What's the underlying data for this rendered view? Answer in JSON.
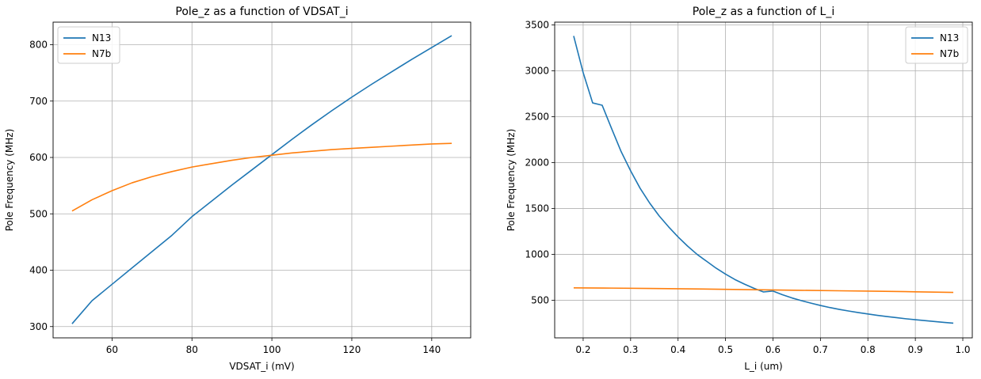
{
  "chart_data": [
    {
      "type": "line",
      "title": "Pole_z as a function of VDSAT_i",
      "xlabel": "VDSAT_i (mV)",
      "ylabel": "Pole Frequency (MHz)",
      "xlim": [
        45.25,
        149.75
      ],
      "ylim": [
        280,
        840
      ],
      "xticks": [
        60,
        80,
        100,
        120,
        140
      ],
      "yticks": [
        300,
        400,
        500,
        600,
        700,
        800
      ],
      "grid": true,
      "legend_position": "upper-left",
      "series": [
        {
          "name": "N13",
          "color": "#1f77b4",
          "x": [
            50,
            55,
            60,
            65,
            70,
            75,
            80,
            85,
            90,
            95,
            100,
            105,
            110,
            115,
            120,
            125,
            130,
            135,
            140,
            145
          ],
          "y": [
            305,
            346,
            375,
            404,
            433,
            462,
            495,
            523,
            551,
            578,
            605,
            632,
            658,
            683,
            707,
            730,
            752,
            774,
            795,
            816
          ]
        },
        {
          "name": "N7b",
          "color": "#ff7f0e",
          "x": [
            50,
            55,
            60,
            65,
            70,
            75,
            80,
            85,
            90,
            95,
            100,
            105,
            110,
            115,
            120,
            125,
            130,
            135,
            140,
            145
          ],
          "y": [
            505,
            525,
            541,
            555,
            566,
            575,
            583,
            589,
            595,
            600,
            604,
            608,
            611,
            614,
            616,
            618,
            620,
            622,
            624,
            625
          ]
        }
      ]
    },
    {
      "type": "line",
      "title": "Pole_z as a function of L_i",
      "xlabel": "L_i (um)",
      "ylabel": "Pole Frequency (MHz)",
      "xlim": [
        0.14,
        1.02
      ],
      "ylim": [
        90,
        3530
      ],
      "xticks": [
        0.2,
        0.3,
        0.4,
        0.5,
        0.6,
        0.7,
        0.8,
        0.9,
        1.0
      ],
      "xtick_labels": [
        "0.2",
        "0.3",
        "0.4",
        "0.5",
        "0.6",
        "0.7",
        "0.8",
        "0.9",
        "1.0"
      ],
      "yticks": [
        500,
        1000,
        1500,
        2000,
        2500,
        3000,
        3500
      ],
      "grid": true,
      "legend_position": "upper-right",
      "series": [
        {
          "name": "N13",
          "color": "#1f77b4",
          "x": [
            0.18,
            0.2,
            0.22,
            0.24,
            0.26,
            0.28,
            0.3,
            0.32,
            0.34,
            0.36,
            0.38,
            0.4,
            0.42,
            0.44,
            0.46,
            0.48,
            0.5,
            0.52,
            0.54,
            0.56,
            0.58,
            0.6,
            0.62,
            0.64,
            0.66,
            0.68,
            0.7,
            0.72,
            0.74,
            0.76,
            0.78,
            0.8,
            0.82,
            0.84,
            0.86,
            0.88,
            0.9,
            0.92,
            0.94,
            0.96,
            0.98
          ],
          "y": [
            3380,
            2980,
            2650,
            2625,
            2370,
            2120,
            1910,
            1720,
            1560,
            1420,
            1300,
            1190,
            1090,
            1000,
            925,
            850,
            785,
            725,
            675,
            630,
            590,
            600,
            560,
            525,
            495,
            468,
            443,
            420,
            400,
            382,
            365,
            350,
            335,
            322,
            310,
            298,
            288,
            278,
            268,
            259,
            250
          ]
        },
        {
          "name": "N7b",
          "color": "#ff7f0e",
          "x": [
            0.18,
            0.26,
            0.34,
            0.42,
            0.5,
            0.58,
            0.66,
            0.74,
            0.82,
            0.9,
            0.98
          ],
          "y": [
            635,
            632,
            628,
            624,
            619,
            613,
            608,
            603,
            598,
            592,
            585
          ]
        }
      ]
    }
  ]
}
